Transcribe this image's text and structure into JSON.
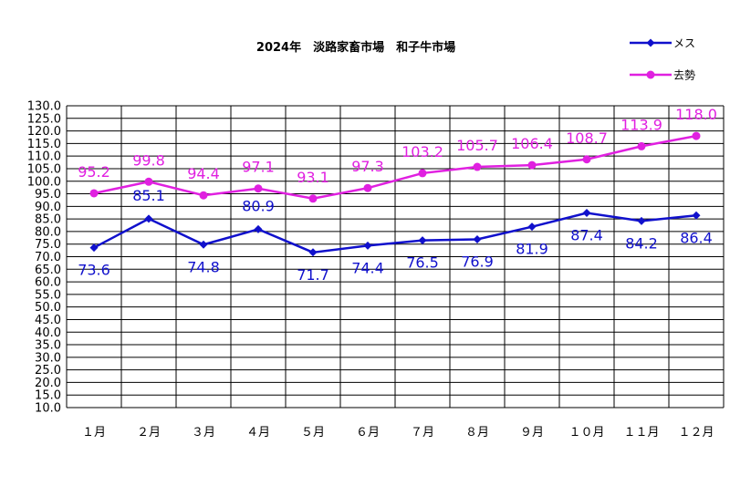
{
  "chart_data": {
    "type": "line",
    "title": "2024年　淡路家畜市場　和子牛市場",
    "categories": [
      "１月",
      "２月",
      "３月",
      "４月",
      "５月",
      "６月",
      "７月",
      "８月",
      "９月",
      "１０月",
      "１１月",
      "１２月"
    ],
    "ylim": [
      10.0,
      130.0
    ],
    "ytick_step": 5.0,
    "grid": true,
    "legend_position": "top-right",
    "series": [
      {
        "name": "メス",
        "color": "#1010cc",
        "values": [
          73.6,
          85.1,
          74.8,
          80.9,
          71.7,
          74.4,
          76.5,
          76.9,
          81.9,
          87.4,
          84.2,
          86.4
        ],
        "labels": [
          "73.6",
          "85.1",
          "74.8",
          "80.9",
          "71.7",
          "74.4",
          "76.5",
          "76.9",
          "81.9",
          "87.4",
          "84.2",
          "86.4"
        ]
      },
      {
        "name": "去勢",
        "color": "#e020e0",
        "values": [
          95.2,
          99.8,
          94.4,
          97.1,
          93.1,
          97.3,
          103.2,
          105.7,
          106.4,
          108.7,
          113.9,
          118.0
        ],
        "labels": [
          "95.2",
          "99.8",
          "94.4",
          "97.1",
          "93.1",
          "97.3",
          "103.2",
          "105.7",
          "106.4",
          "108.7",
          "113.9",
          "118.0"
        ]
      }
    ]
  }
}
